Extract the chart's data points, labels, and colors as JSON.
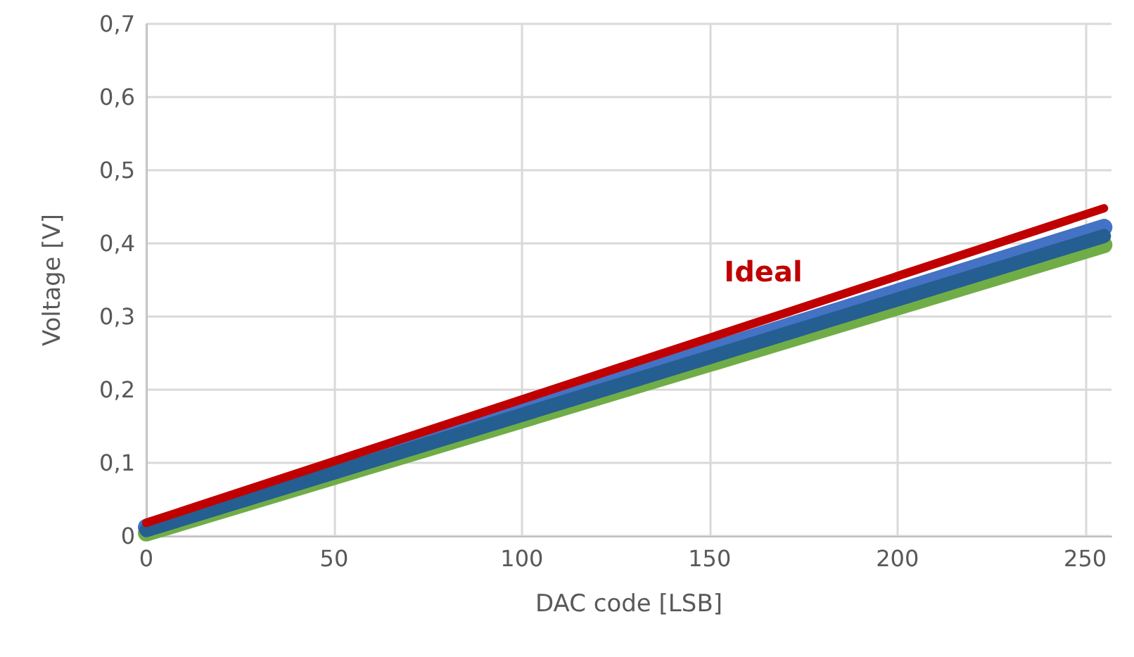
{
  "chart_data": {
    "type": "line",
    "xlabel": "DAC code [LSB]",
    "ylabel": "Voltage [V]",
    "xlim": [
      0,
      257
    ],
    "xticks": [
      0,
      50,
      100,
      150,
      200,
      250
    ],
    "ylim": [
      0,
      0.7
    ],
    "yticks": [
      {
        "value": 0,
        "label": "0"
      },
      {
        "value": 0.1,
        "label": "0,1"
      },
      {
        "value": 0.2,
        "label": "0,2"
      },
      {
        "value": 0.3,
        "label": "0,3"
      },
      {
        "value": 0.4,
        "label": "0,4"
      },
      {
        "value": 0.5,
        "label": "0,5"
      },
      {
        "value": 0.6,
        "label": "0,6"
      },
      {
        "value": 0.7,
        "label": "0,7"
      }
    ],
    "grid": true,
    "legend": false,
    "marker": "none",
    "x": [
      0,
      255
    ],
    "series": [
      {
        "color": "#70ad47",
        "values": [
          0.004,
          0.398
        ]
      },
      {
        "color": "#4472c4",
        "values": [
          0.012,
          0.422
        ]
      },
      {
        "color": "#255e91",
        "values": [
          0.008,
          0.41
        ]
      },
      {
        "name": "Ideal",
        "color": "#c00000",
        "values": [
          0.018,
          0.448
        ]
      }
    ]
  }
}
